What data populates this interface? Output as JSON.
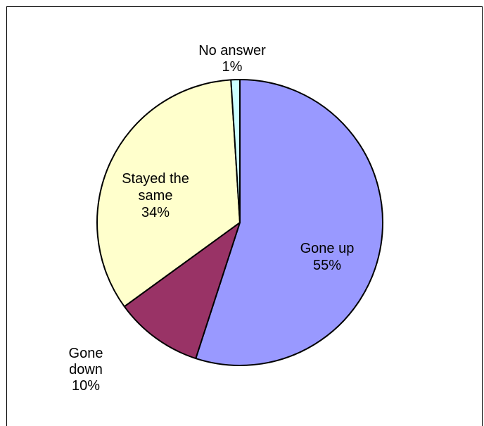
{
  "chart_data": {
    "type": "pie",
    "title": "",
    "start_angle_deg": 0,
    "direction": "clockwise",
    "slices": [
      {
        "label": "Gone up",
        "value": 55,
        "percent_label": "55%",
        "color": "#9999ff"
      },
      {
        "label": "Gone down",
        "value": 10,
        "percent_label": "10%",
        "color": "#993366"
      },
      {
        "label": "Stayed the same",
        "value": 34,
        "percent_label": "34%",
        "color": "#ffffcc"
      },
      {
        "label": "No answer",
        "value": 1,
        "percent_label": "1%",
        "color": "#ccffff"
      }
    ],
    "labels": [
      {
        "lines": [
          "Gone up",
          "55%"
        ]
      },
      {
        "lines": [
          "Gone",
          "down",
          "10%"
        ]
      },
      {
        "lines": [
          "Stayed the",
          "same",
          "34%"
        ]
      },
      {
        "lines": [
          "No answer",
          "1%"
        ]
      }
    ],
    "legend": "none",
    "grid": false
  }
}
